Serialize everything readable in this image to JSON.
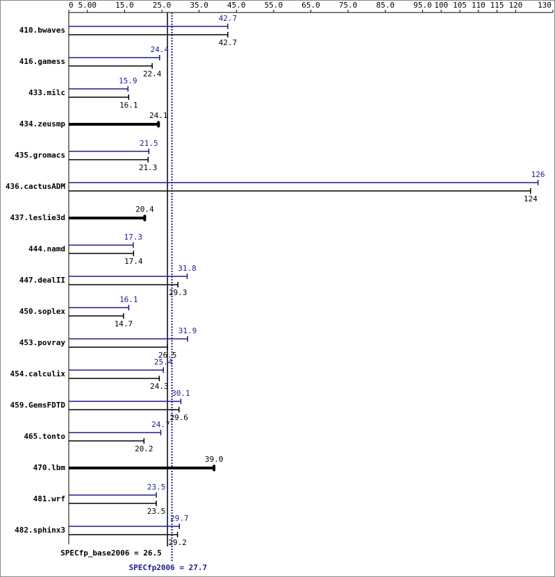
{
  "chart_data": {
    "type": "bar",
    "orientation": "horizontal",
    "categories": [
      "410.bwaves",
      "416.gamess",
      "433.milc",
      "434.zeusmp",
      "435.gromacs",
      "436.cactusADM",
      "437.leslie3d",
      "444.namd",
      "447.dealII",
      "450.soplex",
      "453.povray",
      "454.calculix",
      "459.GemsFDTD",
      "465.tonto",
      "470.lbm",
      "481.wrf",
      "482.sphinx3"
    ],
    "series": [
      {
        "color": "#1c1c8c",
        "values": [
          42.7,
          24.4,
          15.9,
          null,
          21.5,
          126,
          null,
          17.3,
          31.8,
          16.1,
          31.9,
          25.4,
          30.1,
          24.7,
          null,
          23.5,
          29.7
        ]
      },
      {
        "color": "#000000",
        "values": [
          42.7,
          22.4,
          16.1,
          24.1,
          21.3,
          124,
          20.4,
          17.4,
          29.3,
          14.7,
          26.5,
          24.3,
          29.6,
          20.2,
          39,
          23.5,
          29.2
        ],
        "value_labels": [
          "42.7",
          "22.4",
          "16.1",
          "24.1",
          "21.3",
          "124",
          "20.4",
          "17.4",
          "29.3",
          "14.7",
          "26.5",
          "24.3",
          "29.6",
          "20.2",
          "39.0",
          "23.5",
          "29.2"
        ]
      }
    ],
    "xlim": [
      0,
      130
    ],
    "xticks": [
      0,
      {
        "value": 5,
        "label": "5.00"
      },
      {
        "value": 15,
        "label": "15.0"
      },
      {
        "value": 25,
        "label": "25.0"
      },
      {
        "value": 35,
        "label": "35.0"
      },
      {
        "value": 45,
        "label": "45.0"
      },
      {
        "value": 55,
        "label": "55.0"
      },
      {
        "value": 65,
        "label": "65.0"
      },
      {
        "value": 75,
        "label": "75.0"
      },
      {
        "value": 85,
        "label": "85.0"
      },
      {
        "value": 95,
        "label": "95.0"
      },
      100,
      105,
      110,
      115,
      120,
      130
    ],
    "reference_lines": [
      {
        "label": "SPECfp_base2006 = 26.5",
        "value": 26.5,
        "color": "#000000",
        "dashed": false
      },
      {
        "label": "SPECfp2006 = 27.7",
        "value": 27.7,
        "color": "#1c1c8c",
        "dashed": true
      }
    ]
  }
}
